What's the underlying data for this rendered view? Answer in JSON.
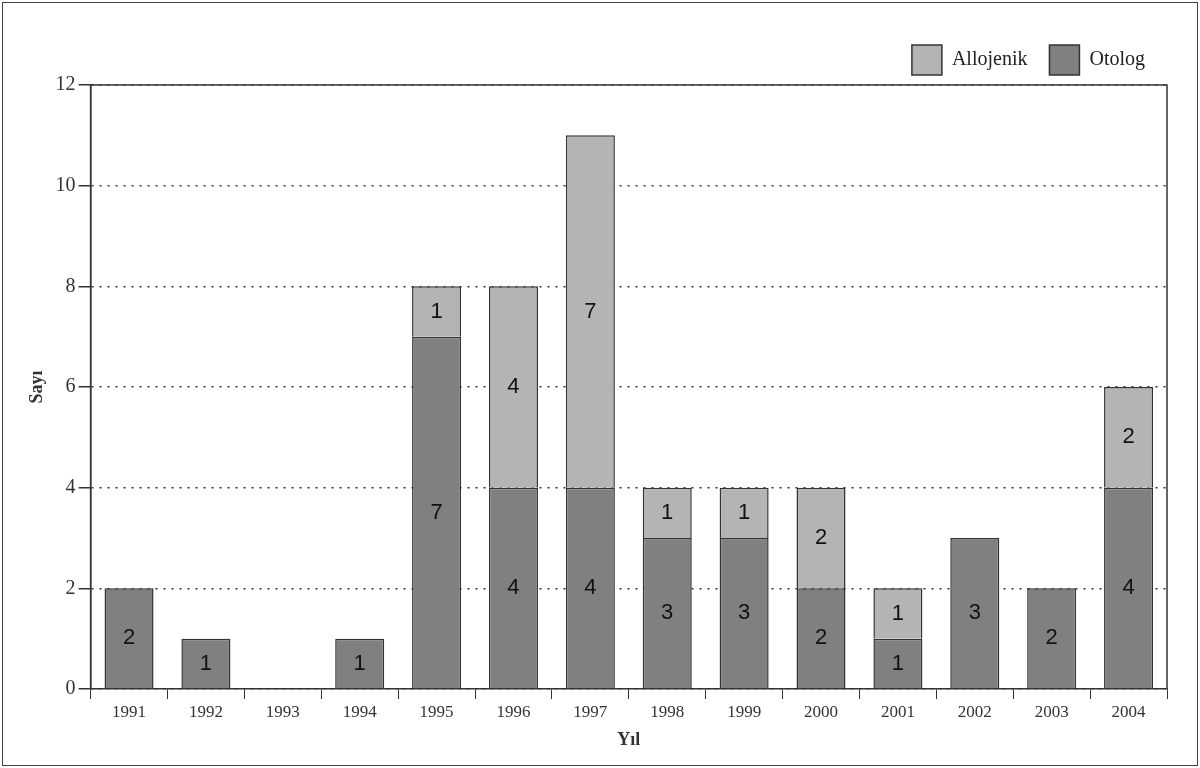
{
  "chart_data": {
    "type": "bar",
    "xlabel": "Yıl",
    "ylabel": "Sayı",
    "categories": [
      "1991",
      "1992",
      "1993",
      "1994",
      "1995",
      "1996",
      "1997",
      "1998",
      "1999",
      "2000",
      "2001",
      "2002",
      "2003",
      "2004"
    ],
    "series": [
      {
        "name": "Otolog",
        "color": "#808080",
        "values": [
          2,
          1,
          null,
          1,
          7,
          4,
          4,
          3,
          3,
          2,
          1,
          3,
          2,
          4
        ]
      },
      {
        "name": "Allojenik",
        "color": "#b4b4b4",
        "values": [
          null,
          null,
          null,
          null,
          1,
          4,
          7,
          1,
          1,
          2,
          1,
          null,
          null,
          2
        ]
      }
    ],
    "stacked": true,
    "ylim": [
      0,
      12
    ],
    "yticks": [
      0,
      2,
      4,
      6,
      8,
      10,
      12
    ],
    "grid": "y",
    "legend": "top right",
    "data_labels": true
  }
}
